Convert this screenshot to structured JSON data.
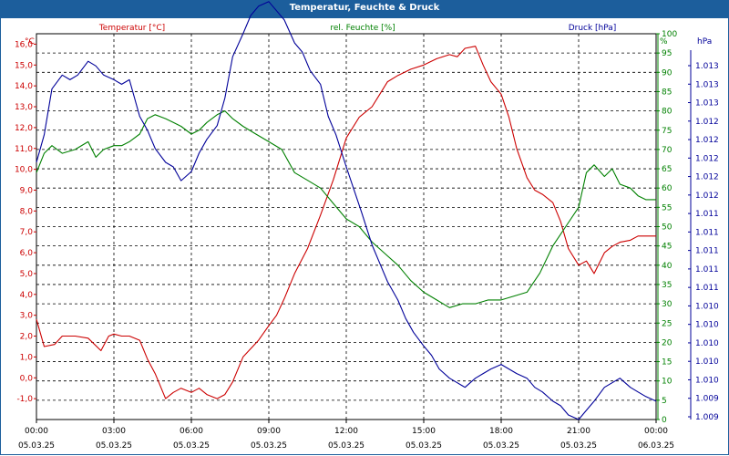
{
  "window": {
    "title": "Temperatur, Feuchte & Druck"
  },
  "chart_data": {
    "type": "line",
    "title": "Temperatur, Feuchte & Druck",
    "grid": true,
    "x_labels": [
      {
        "time": "00:00",
        "date": "05.03.25",
        "hour": 0
      },
      {
        "time": "03:00",
        "date": "05.03.25",
        "hour": 3
      },
      {
        "time": "06:00",
        "date": "05.03.25",
        "hour": 6
      },
      {
        "time": "09:00",
        "date": "05.03.25",
        "hour": 9
      },
      {
        "time": "12:00",
        "date": "05.03.25",
        "hour": 12
      },
      {
        "time": "15:00",
        "date": "05.03.25",
        "hour": 15
      },
      {
        "time": "18:00",
        "date": "05.03.25",
        "hour": 18
      },
      {
        "time": "21:00",
        "date": "05.03.25",
        "hour": 21
      },
      {
        "time": "00:00",
        "date": "06.03.25",
        "hour": 24
      }
    ],
    "xlim": [
      0,
      24
    ],
    "axes": {
      "temperature": {
        "unit": "°C",
        "legend": "Temperatur [°C]",
        "color": "#cc0000",
        "ylim": [
          -2,
          16.5
        ],
        "ticks": [
          "-1,0",
          "0,0",
          "1,0",
          "2,0",
          "3,0",
          "4,0",
          "5,0",
          "6,0",
          "7,0",
          "8,0",
          "9,0",
          "10,0",
          "11,0",
          "12,0",
          "13,0",
          "14,0",
          "15,0",
          "16,0"
        ]
      },
      "humidity": {
        "unit": "%",
        "legend": "rel. Feuchte [%]",
        "color": "#008000",
        "ylim": [
          0,
          100
        ],
        "ticks": [
          "0",
          "5",
          "10",
          "15",
          "20",
          "25",
          "30",
          "35",
          "40",
          "45",
          "50",
          "55",
          "60",
          "65",
          "70",
          "75",
          "80",
          "85",
          "90",
          "95",
          "100"
        ]
      },
      "pressure": {
        "unit": "hPa",
        "legend": "Druck [hPa]",
        "color": "#000099",
        "ylim": [
          1009.0,
          1013.2
        ],
        "ticks": [
          "1.009",
          "1.009",
          "1.010",
          "1.010",
          "1.010",
          "1.010",
          "1.010",
          "1.011",
          "1.011",
          "1.011",
          "1.011",
          "1.011",
          "1.012",
          "1.012",
          "1.012",
          "1.012",
          "1.012",
          "1.013",
          "1.013",
          "1.013"
        ]
      }
    },
    "series": [
      {
        "name": "Temperatur [°C]",
        "axis": "temperature",
        "color": "#cc0000",
        "x": [
          0,
          0.3,
          0.7,
          1,
          1.5,
          2,
          2.5,
          2.8,
          3,
          3.3,
          3.6,
          4,
          4.3,
          4.6,
          5,
          5.3,
          5.6,
          6,
          6.3,
          6.6,
          7,
          7.3,
          7.6,
          8,
          8.3,
          8.6,
          9,
          9.3,
          9.6,
          10,
          10.5,
          11,
          11.5,
          12,
          12.5,
          13,
          13.3,
          13.6,
          14,
          14.5,
          15,
          15.5,
          16,
          16.3,
          16.6,
          17,
          17.3,
          17.6,
          18,
          18.3,
          18.6,
          19,
          19.3,
          19.6,
          20,
          20.3,
          20.6,
          21,
          21.3,
          21.6,
          22,
          22.3,
          22.6,
          23,
          23.3,
          23.6,
          24
        ],
        "values": [
          2.8,
          1.5,
          1.6,
          2.0,
          2.0,
          1.9,
          1.3,
          2.0,
          2.1,
          2.0,
          2.0,
          1.8,
          0.9,
          0.2,
          -1.0,
          -0.7,
          -0.5,
          -0.7,
          -0.5,
          -0.8,
          -1.0,
          -0.8,
          -0.2,
          1.0,
          1.4,
          1.8,
          2.5,
          3.0,
          3.8,
          5.0,
          6.2,
          7.8,
          9.5,
          11.5,
          12.5,
          13.0,
          13.6,
          14.2,
          14.5,
          14.8,
          15.0,
          15.3,
          15.5,
          15.4,
          15.8,
          15.9,
          15.0,
          14.2,
          13.6,
          12.5,
          11.0,
          9.6,
          9.0,
          8.8,
          8.4,
          7.5,
          6.2,
          5.4,
          5.6,
          5.0,
          6.0,
          6.3,
          6.5,
          6.6,
          6.8,
          6.8,
          6.8
        ]
      },
      {
        "name": "rel. Feuchte [%]",
        "axis": "humidity",
        "color": "#008000",
        "x": [
          0,
          0.3,
          0.6,
          1,
          1.5,
          2,
          2.3,
          2.6,
          3,
          3.3,
          3.6,
          4,
          4.3,
          4.6,
          5,
          5.3,
          5.6,
          6,
          6.3,
          6.6,
          7,
          7.3,
          7.6,
          8,
          8.5,
          9,
          9.5,
          10,
          10.5,
          11,
          11.5,
          12,
          12.5,
          13,
          13.5,
          14,
          14.5,
          15,
          15.5,
          16,
          16.5,
          17,
          17.5,
          18,
          18.5,
          19,
          19.5,
          20,
          20.5,
          21,
          21.3,
          21.6,
          22,
          22.3,
          22.6,
          23,
          23.3,
          23.6,
          24
        ],
        "values": [
          64,
          69,
          71,
          69,
          70,
          72,
          68,
          70,
          71,
          71,
          72,
          74,
          78,
          79,
          78,
          77,
          76,
          74,
          75,
          77,
          79,
          80,
          78,
          76,
          74,
          72,
          70,
          64,
          62,
          60,
          56,
          52,
          50,
          46,
          43,
          40,
          36,
          33,
          31,
          29,
          30,
          30,
          31,
          31,
          32,
          33,
          38,
          45,
          50,
          55,
          64,
          66,
          63,
          65,
          61,
          60,
          58,
          57,
          57
        ]
      },
      {
        "name": "Druck [hPa]",
        "axis": "pressure",
        "color": "#000099",
        "x": [
          0,
          0.3,
          0.6,
          1,
          1.3,
          1.6,
          2,
          2.3,
          2.6,
          3,
          3.3,
          3.6,
          4,
          4.3,
          4.6,
          5,
          5.3,
          5.6,
          6,
          6.3,
          6.6,
          7,
          7.3,
          7.6,
          8,
          8.3,
          8.6,
          9,
          9.3,
          9.6,
          10,
          10.3,
          10.6,
          11,
          11.3,
          11.6,
          12,
          12.3,
          12.6,
          13,
          13.3,
          13.6,
          14,
          14.3,
          14.6,
          15,
          15.3,
          15.6,
          16,
          16.3,
          16.6,
          17,
          17.3,
          17.6,
          18,
          18.3,
          18.6,
          19,
          19.3,
          19.6,
          20,
          20.3,
          20.6,
          21,
          21.3,
          21.6,
          22,
          22.3,
          22.6,
          23,
          23.3,
          23.6,
          24
        ],
        "values": [
          1011.8,
          1012.1,
          1012.6,
          1012.75,
          1012.7,
          1012.75,
          1012.9,
          1012.85,
          1012.75,
          1012.7,
          1012.65,
          1012.7,
          1012.3,
          1012.15,
          1011.95,
          1011.8,
          1011.75,
          1011.6,
          1011.7,
          1011.9,
          1012.05,
          1012.2,
          1012.5,
          1012.95,
          1013.2,
          1013.4,
          1013.5,
          1013.55,
          1013.45,
          1013.35,
          1013.1,
          1013.0,
          1012.8,
          1012.65,
          1012.3,
          1012.1,
          1011.75,
          1011.5,
          1011.25,
          1010.9,
          1010.7,
          1010.5,
          1010.3,
          1010.1,
          1009.95,
          1009.8,
          1009.7,
          1009.55,
          1009.45,
          1009.4,
          1009.35,
          1009.45,
          1009.5,
          1009.55,
          1009.6,
          1009.55,
          1009.5,
          1009.45,
          1009.35,
          1009.3,
          1009.2,
          1009.15,
          1009.05,
          1009.0,
          1009.1,
          1009.2,
          1009.35,
          1009.4,
          1009.45,
          1009.35,
          1009.3,
          1009.25,
          1009.2
        ]
      }
    ]
  }
}
